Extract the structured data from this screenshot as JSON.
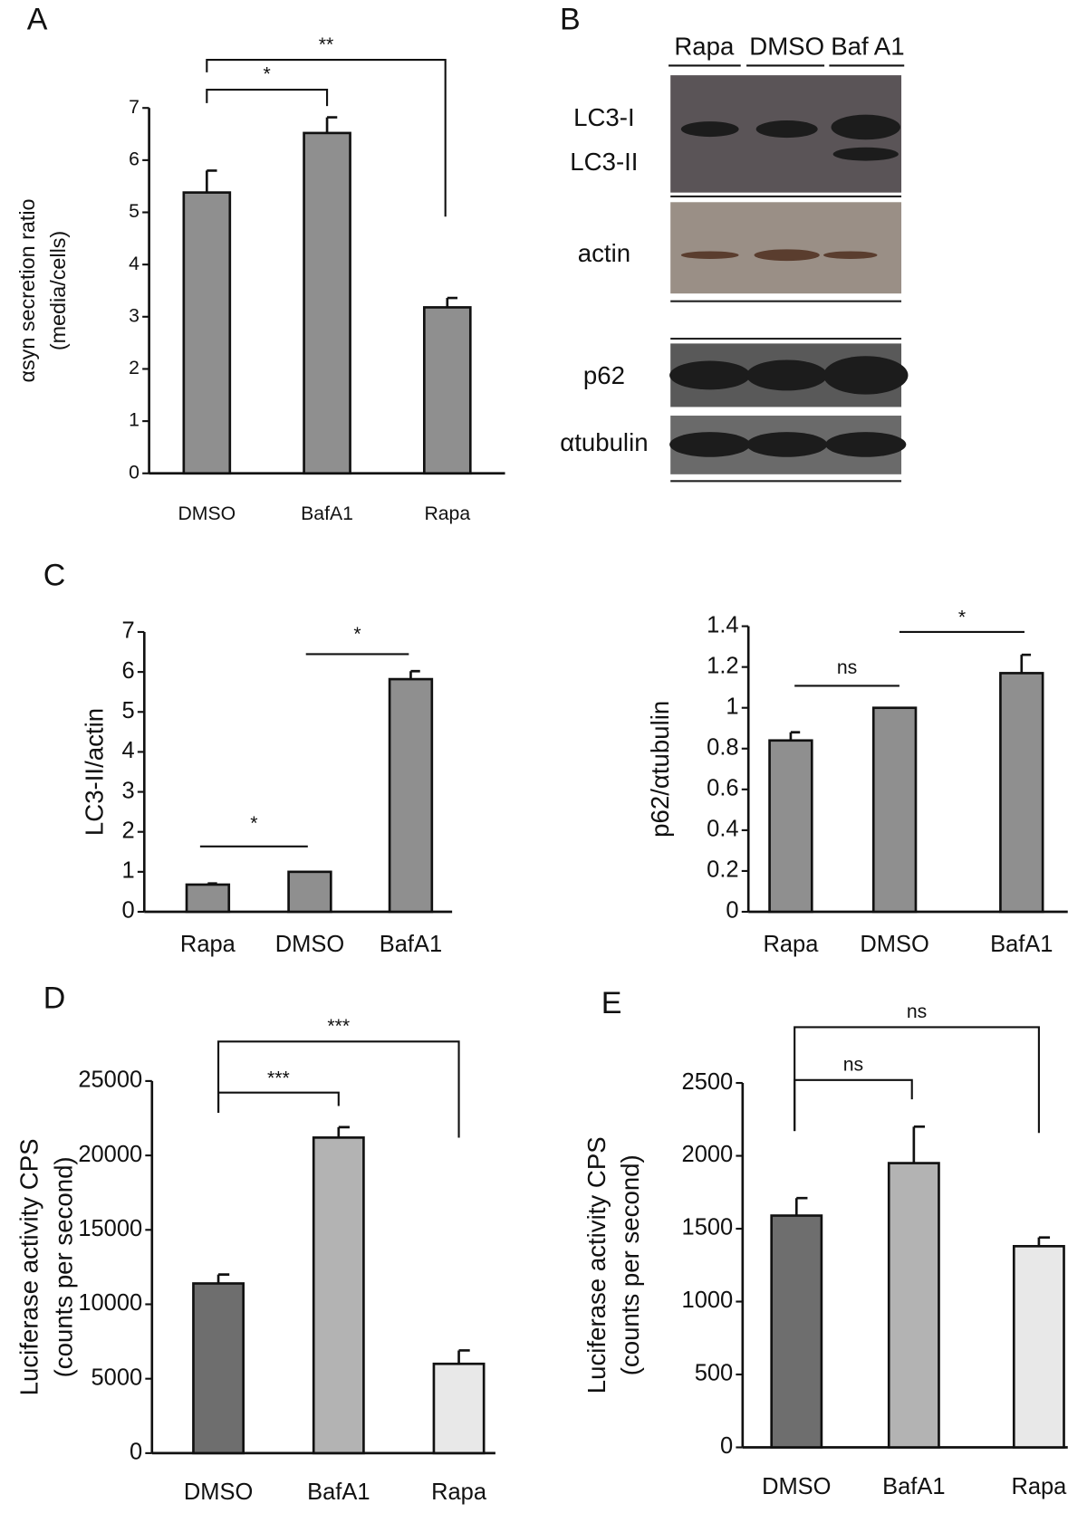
{
  "chart_data": [
    {
      "type": "bar",
      "panel": "A",
      "ylabel": [
        "αsyn secretion ratio",
        "(media/cells)"
      ],
      "categories": [
        "DMSO",
        "BafA1",
        "Rapa"
      ],
      "values": [
        5.38,
        6.52,
        3.18
      ],
      "errors": [
        0.42,
        0.3,
        0.18
      ],
      "color": "#8f8f8f",
      "ylim": [
        0,
        7
      ],
      "yticks": [
        0,
        1,
        2,
        3,
        4,
        5,
        6,
        7
      ],
      "annotations": [
        "*",
        "**"
      ]
    },
    {
      "type": "bar",
      "panel": "C",
      "ylabel": [
        "LC3-II/actin"
      ],
      "categories": [
        "Rapa",
        "DMSO",
        "BafA1"
      ],
      "values": [
        0.68,
        1.0,
        5.82
      ],
      "errors": [
        0.03,
        0,
        0.2
      ],
      "color": "#8f8f8f",
      "ylim": [
        0,
        7
      ],
      "yticks": [
        0,
        1,
        2,
        3,
        4,
        5,
        6,
        7
      ],
      "annotations": [
        "*",
        "*"
      ]
    },
    {
      "type": "bar",
      "ylabel": [
        "p62/αtubulin"
      ],
      "categories": [
        "Rapa",
        "DMSO",
        "BafA1"
      ],
      "values": [
        0.84,
        1.0,
        1.17
      ],
      "errors": [
        0.04,
        0,
        0.09
      ],
      "color": "#8f8f8f",
      "ylim": [
        0,
        1.4
      ],
      "yticks": [
        0,
        0.2,
        0.4,
        0.6,
        0.8,
        1,
        1.2,
        1.4
      ],
      "annotations": [
        "ns",
        "*"
      ]
    },
    {
      "type": "bar",
      "panel": "D",
      "ylabel": [
        "Luciferase activity CPS",
        "(counts per second)"
      ],
      "categories": [
        "DMSO",
        "BafA1",
        "Rapa"
      ],
      "values": [
        11400,
        21200,
        6000
      ],
      "errors": [
        600,
        700,
        900
      ],
      "colors": [
        "#6e6e6e",
        "#b3b3b3",
        "#e8e8e8"
      ],
      "ylim": [
        0,
        25000
      ],
      "yticks": [
        0,
        5000,
        10000,
        15000,
        20000,
        25000
      ],
      "annotations": [
        "***",
        "***"
      ]
    },
    {
      "type": "bar",
      "panel": "E",
      "ylabel": [
        "Luciferase activity CPS",
        "(counts per second)"
      ],
      "categories": [
        "DMSO",
        "BafA1",
        "Rapa"
      ],
      "values": [
        1590,
        1950,
        1380
      ],
      "errors": [
        120,
        250,
        60
      ],
      "colors": [
        "#6e6e6e",
        "#b3b3b3",
        "#e8e8e8"
      ],
      "ylim": [
        0,
        2500
      ],
      "yticks": [
        0,
        500,
        1000,
        1500,
        2000,
        2500
      ],
      "annotations": [
        "ns",
        "ns"
      ]
    }
  ],
  "blot": {
    "panel": "B",
    "lanes": [
      "Rapa",
      "DMSO",
      "Baf A1"
    ],
    "labels": [
      "LC3-I",
      "LC3-II",
      "actin",
      "p62",
      "αtubulin"
    ]
  }
}
